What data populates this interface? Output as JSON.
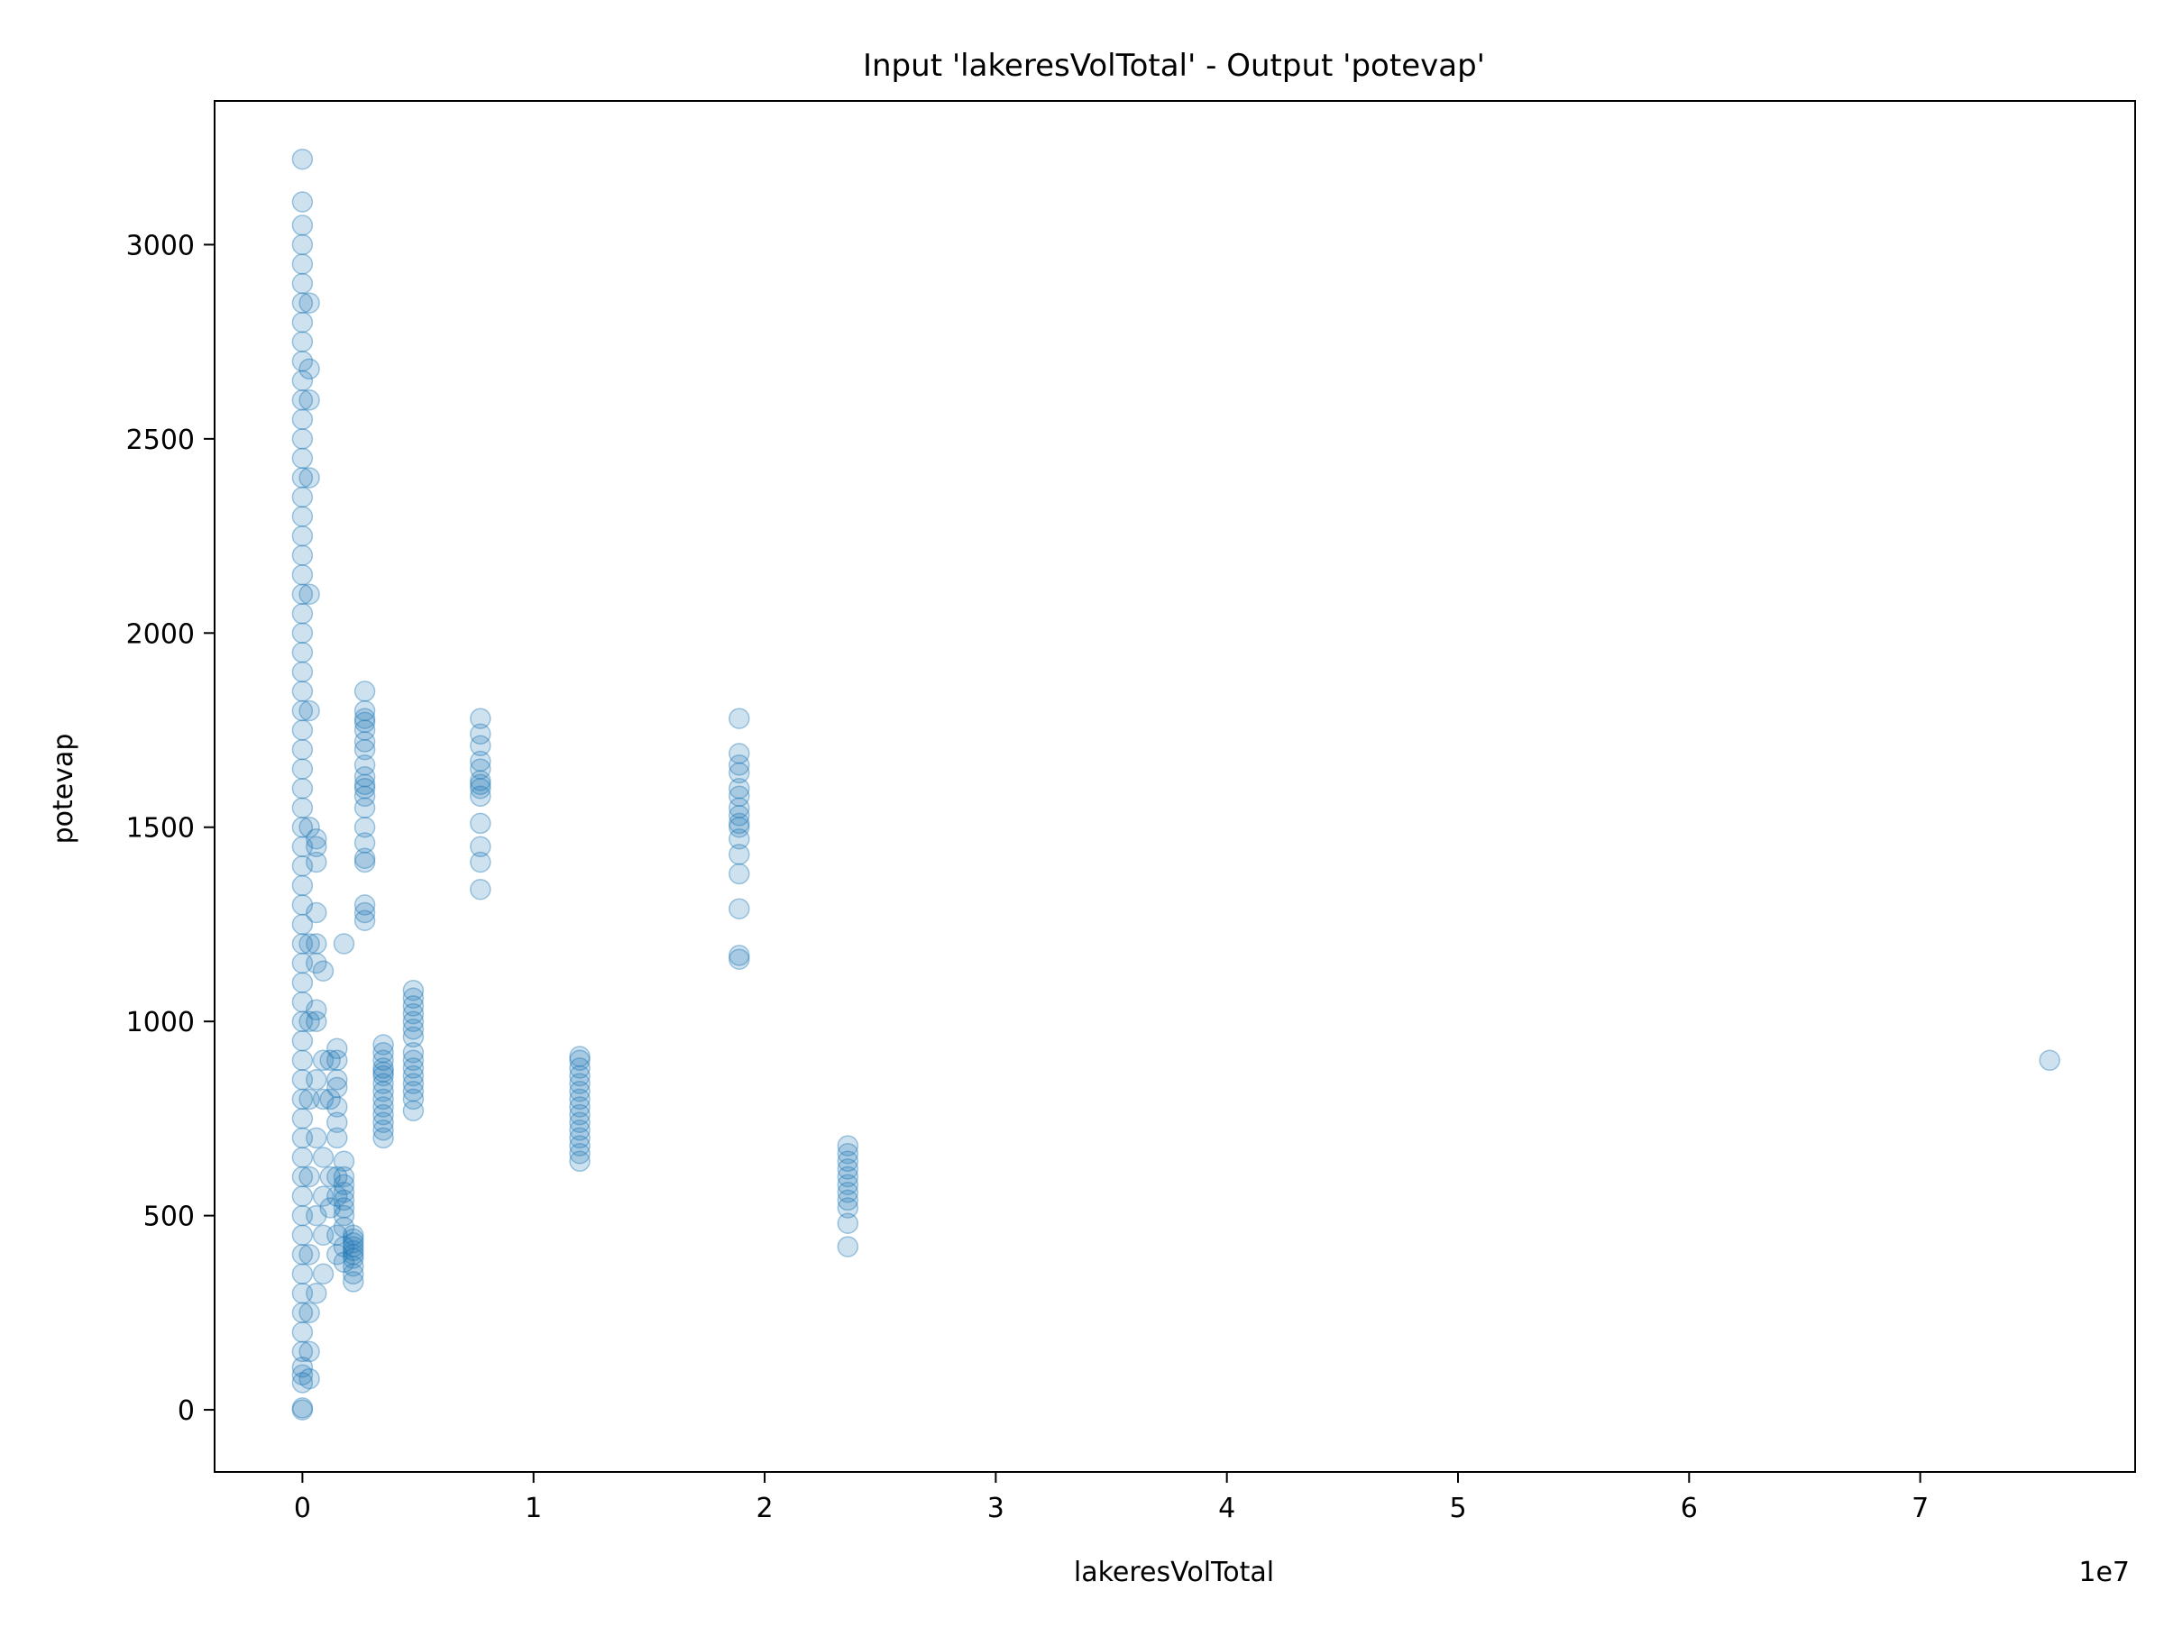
{
  "chart_data": {
    "type": "scatter",
    "title": "Input 'lakeresVolTotal' - Output 'potevap'",
    "xlabel": "lakeresVolTotal",
    "ylabel": "potevap",
    "x_offset_label": "1e7",
    "x_multiplier": 10000000,
    "xlim": [
      -0.38,
      7.93
    ],
    "ylim": [
      -160,
      3370
    ],
    "x_ticks": [
      0,
      1,
      2,
      3,
      4,
      5,
      6,
      7
    ],
    "x_tick_labels": [
      "0",
      "1",
      "2",
      "3",
      "4",
      "5",
      "6",
      "7"
    ],
    "y_ticks": [
      0,
      500,
      1000,
      1500,
      2000,
      2500,
      3000
    ],
    "y_tick_labels": [
      "0",
      "500",
      "1000",
      "1500",
      "2000",
      "2500",
      "3000"
    ],
    "grid": false,
    "legend": "none",
    "marker_color": "#1f77b4",
    "marker_alpha": 0.22,
    "clusters": [
      {
        "x": 0.0,
        "y": [
          0,
          5,
          70,
          90,
          110,
          150,
          200,
          250,
          300,
          350,
          400,
          450,
          500,
          550,
          600,
          650,
          700,
          750,
          800,
          850,
          900,
          950,
          1000,
          1050,
          1100,
          1150,
          1200,
          1250,
          1300,
          1350,
          1400,
          1450,
          1500,
          1550,
          1600,
          1650,
          1700,
          1750,
          1800,
          1850,
          1900,
          1950,
          2000,
          2050,
          2100,
          2150,
          2200,
          2250,
          2300,
          2350,
          2400,
          2450,
          2500,
          2550,
          2600,
          2650,
          2700,
          2750,
          2800,
          2850,
          2900,
          2950,
          3000,
          3050,
          3110,
          3220
        ]
      },
      {
        "x": 0.03,
        "y": [
          80,
          150,
          250,
          400,
          600,
          800,
          1000,
          1200,
          1500,
          1800,
          2100,
          2400,
          2600,
          2680,
          2850
        ]
      },
      {
        "x": 0.06,
        "y": [
          300,
          500,
          700,
          850,
          1000,
          1030,
          1150,
          1200,
          1280,
          1410,
          1450,
          1470
        ]
      },
      {
        "x": 0.09,
        "y": [
          350,
          450,
          550,
          650,
          800,
          900,
          1130
        ]
      },
      {
        "x": 0.12,
        "y": [
          520,
          600,
          800,
          900
        ]
      },
      {
        "x": 0.15,
        "y": [
          400,
          450,
          550,
          600,
          700,
          740,
          780,
          830,
          850,
          900,
          930
        ]
      },
      {
        "x": 0.18,
        "y": [
          380,
          420,
          470,
          500,
          520,
          540,
          560,
          580,
          600,
          640,
          1200
        ]
      },
      {
        "x": 0.22,
        "y": [
          330,
          350,
          370,
          390,
          400,
          410,
          420,
          430,
          440,
          450
        ]
      },
      {
        "x": 0.27,
        "y": [
          1260,
          1280,
          1300,
          1410,
          1420,
          1460,
          1500,
          1550,
          1580,
          1600,
          1610,
          1630,
          1660,
          1700,
          1720,
          1750,
          1770,
          1780,
          1800,
          1850
        ]
      },
      {
        "x": 0.35,
        "y": [
          700,
          720,
          740,
          760,
          780,
          800,
          820,
          840,
          860,
          870,
          880,
          900,
          920,
          940
        ]
      },
      {
        "x": 0.48,
        "y": [
          770,
          800,
          820,
          840,
          860,
          880,
          900,
          920,
          960,
          980,
          1000,
          1020,
          1040,
          1060,
          1080
        ]
      },
      {
        "x": 0.77,
        "y": [
          1340,
          1410,
          1450,
          1510,
          1580,
          1600,
          1610,
          1620,
          1650,
          1670,
          1710,
          1740,
          1780
        ]
      },
      {
        "x": 1.2,
        "y": [
          640,
          660,
          680,
          700,
          720,
          740,
          760,
          780,
          800,
          820,
          840,
          860,
          880,
          900,
          910
        ]
      },
      {
        "x": 1.89,
        "y": [
          1160,
          1170,
          1290,
          1380,
          1430,
          1470,
          1500,
          1510,
          1530,
          1550,
          1580,
          1600,
          1640,
          1660,
          1690,
          1780
        ]
      },
      {
        "x": 2.36,
        "y": [
          420,
          480,
          520,
          540,
          560,
          580,
          600,
          620,
          640,
          660,
          680
        ]
      },
      {
        "x": 7.56,
        "y": [
          900
        ]
      }
    ]
  }
}
